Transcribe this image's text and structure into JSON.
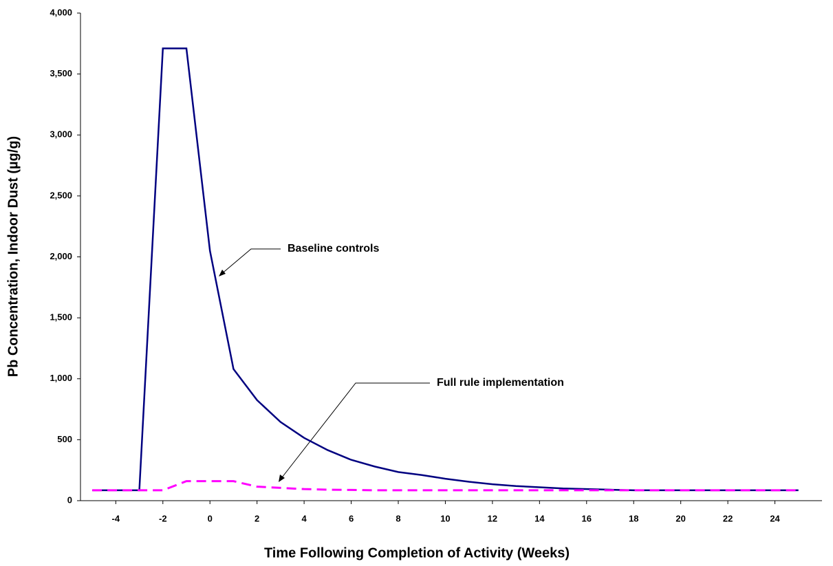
{
  "chart_data": {
    "type": "line",
    "x_label": "Time Following Completion of Activity (Weeks)",
    "y_label": "Pb Concentration, Indoor Dust (µg/g)",
    "annotations": [
      "Baseline controls",
      "Full rule implementation"
    ],
    "x": [
      -5,
      -4,
      -3,
      -2,
      -1,
      0,
      1,
      2,
      3,
      4,
      5,
      6,
      7,
      8,
      9,
      10,
      11,
      12,
      13,
      14,
      15,
      16,
      17,
      18,
      19,
      20,
      21,
      22,
      23,
      24,
      25
    ],
    "series": [
      {
        "name": "Baseline controls",
        "color": "#000080",
        "dashed": false,
        "values": [
          85,
          85,
          85,
          3710,
          3710,
          2050,
          1080,
          825,
          645,
          515,
          415,
          335,
          280,
          235,
          210,
          180,
          155,
          135,
          120,
          110,
          100,
          95,
          90,
          85,
          85,
          85,
          85,
          85,
          85,
          85,
          85
        ]
      },
      {
        "name": "Full rule implementation",
        "color": "#ff00ff",
        "dashed": true,
        "values": [
          85,
          85,
          85,
          85,
          160,
          160,
          160,
          115,
          105,
          95,
          90,
          88,
          85,
          85,
          85,
          85,
          85,
          85,
          85,
          85,
          85,
          85,
          85,
          85,
          85,
          85,
          85,
          85,
          85,
          85,
          85
        ]
      }
    ],
    "xlim": [
      -5.5,
      26
    ],
    "xticks": [
      -4,
      -2,
      0,
      2,
      4,
      6,
      8,
      10,
      12,
      14,
      16,
      18,
      20,
      22,
      24
    ],
    "ylim": [
      0,
      4000
    ],
    "yticks": [
      0,
      500,
      {
        "value": 1000,
        "label": "1,000"
      },
      {
        "value": 1500,
        "label": "1,500"
      },
      {
        "value": 2000,
        "label": "2,000"
      },
      {
        "value": 2500,
        "label": "2,500"
      },
      {
        "value": 3000,
        "label": "3,000"
      },
      {
        "value": 3500,
        "label": "3,500"
      },
      {
        "value": 4000,
        "label": "4,000"
      }
    ],
    "grid": false
  }
}
